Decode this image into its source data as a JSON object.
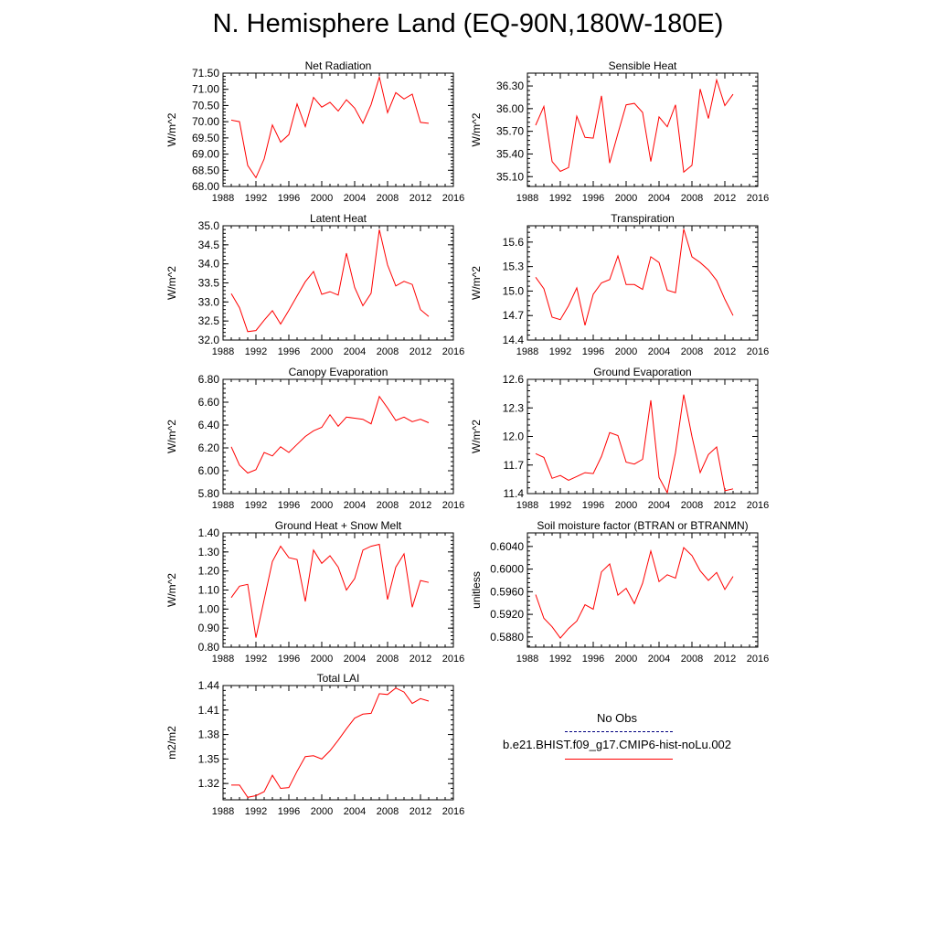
{
  "title": "N. Hemisphere Land (EQ-90N,180W-180E)",
  "colors": {
    "model": "#ff0000",
    "obs": "#000080"
  },
  "legend": [
    {
      "label": "No Obs",
      "style": "dashed",
      "color": "#000080"
    },
    {
      "label": "b.e21.BHIST.f09_g17.CMIP6-hist-noLu.002",
      "style": "solid",
      "color": "#ff0000"
    }
  ],
  "chart_data": [
    {
      "type": "line",
      "title": "Net Radiation",
      "ylabel": "W/m^2",
      "xlim": [
        1988,
        2016
      ],
      "ylim": [
        68.0,
        71.5
      ],
      "xticks": [
        "1988",
        "1992",
        "1996",
        "2000",
        "2004",
        "2008",
        "2012",
        "2016"
      ],
      "yticks": [
        "68.00",
        "68.50",
        "69.00",
        "69.50",
        "70.00",
        "70.50",
        "71.00",
        "71.50"
      ],
      "series": [
        {
          "x": [
            1989,
            1990,
            1991,
            1992,
            1993,
            1994,
            1995,
            1996,
            1997,
            1998,
            1999,
            2000,
            2001,
            2002,
            2003,
            2004,
            2005,
            2006,
            2007,
            2008,
            2009,
            2010,
            2011,
            2012,
            2013
          ],
          "values": [
            70.05,
            70.0,
            68.65,
            68.27,
            68.85,
            69.9,
            69.37,
            69.6,
            70.55,
            69.85,
            70.75,
            70.45,
            70.6,
            70.33,
            70.68,
            70.42,
            69.95,
            70.53,
            71.38,
            70.28,
            70.9,
            70.7,
            70.85,
            69.98,
            69.95
          ]
        }
      ]
    },
    {
      "type": "line",
      "title": "Sensible Heat",
      "ylabel": "W/m^2",
      "xlim": [
        1988,
        2016
      ],
      "ylim": [
        34.97,
        36.47
      ],
      "xticks": [
        "1988",
        "1992",
        "1996",
        "2000",
        "2004",
        "2008",
        "2012",
        "2016"
      ],
      "yticks": [
        "35.10",
        "35.40",
        "35.70",
        "36.00",
        "36.30"
      ],
      "series": [
        {
          "x": [
            1989,
            1990,
            1991,
            1992,
            1993,
            1994,
            1995,
            1996,
            1997,
            1998,
            1999,
            2000,
            2001,
            2002,
            2003,
            2004,
            2005,
            2006,
            2007,
            2008,
            2009,
            2010,
            2011,
            2012,
            2013
          ],
          "values": [
            35.78,
            36.03,
            35.3,
            35.17,
            35.22,
            35.9,
            35.62,
            35.61,
            36.17,
            35.28,
            35.67,
            36.05,
            36.07,
            35.95,
            35.3,
            35.89,
            35.76,
            36.05,
            35.16,
            35.25,
            36.26,
            35.87,
            36.38,
            36.04,
            36.19
          ]
        }
      ]
    },
    {
      "type": "line",
      "title": "Latent Heat",
      "ylabel": "W/m^2",
      "xlim": [
        1988,
        2016
      ],
      "ylim": [
        32.0,
        35.0
      ],
      "xticks": [
        "1988",
        "1992",
        "1996",
        "2000",
        "2004",
        "2008",
        "2012",
        "2016"
      ],
      "yticks": [
        "32.0",
        "32.5",
        "33.0",
        "33.5",
        "34.0",
        "34.5",
        "35.0"
      ],
      "series": [
        {
          "x": [
            1989,
            1990,
            1991,
            1992,
            1993,
            1994,
            1995,
            1996,
            1997,
            1998,
            1999,
            2000,
            2001,
            2002,
            2003,
            2004,
            2005,
            2006,
            2007,
            2008,
            2009,
            2010,
            2011,
            2012,
            2013
          ],
          "values": [
            33.22,
            32.85,
            32.22,
            32.25,
            32.52,
            32.77,
            32.42,
            32.78,
            33.16,
            33.53,
            33.8,
            33.2,
            33.27,
            33.18,
            34.28,
            33.38,
            32.9,
            33.23,
            34.9,
            33.97,
            33.42,
            33.54,
            33.46,
            32.8,
            32.62
          ]
        }
      ]
    },
    {
      "type": "line",
      "title": "Transpiration",
      "ylabel": "W/m^2",
      "xlim": [
        1988,
        2016
      ],
      "ylim": [
        14.4,
        15.8
      ],
      "xticks": [
        "1988",
        "1992",
        "1996",
        "2000",
        "2004",
        "2008",
        "2012",
        "2016"
      ],
      "yticks": [
        "14.4",
        "14.7",
        "15.0",
        "15.3",
        "15.6"
      ],
      "series": [
        {
          "x": [
            1989,
            1990,
            1991,
            1992,
            1993,
            1994,
            1995,
            1996,
            1997,
            1998,
            1999,
            2000,
            2001,
            2002,
            2003,
            2004,
            2005,
            2006,
            2007,
            2008,
            2009,
            2010,
            2011,
            2012,
            2013
          ],
          "values": [
            15.17,
            15.03,
            14.68,
            14.65,
            14.82,
            15.04,
            14.58,
            14.96,
            15.1,
            15.14,
            15.43,
            15.08,
            15.08,
            15.02,
            15.42,
            15.35,
            15.01,
            14.98,
            15.76,
            15.42,
            15.35,
            15.26,
            15.13,
            14.9,
            14.7
          ]
        }
      ]
    },
    {
      "type": "line",
      "title": "Canopy Evaporation",
      "ylabel": "W/m^2",
      "xlim": [
        1988,
        2016
      ],
      "ylim": [
        5.8,
        6.8
      ],
      "xticks": [
        "1988",
        "1992",
        "1996",
        "2000",
        "2004",
        "2008",
        "2012",
        "2016"
      ],
      "yticks": [
        "5.80",
        "6.00",
        "6.20",
        "6.40",
        "6.60",
        "6.80"
      ],
      "series": [
        {
          "x": [
            1989,
            1990,
            1991,
            1992,
            1993,
            1994,
            1995,
            1996,
            1997,
            1998,
            1999,
            2000,
            2001,
            2002,
            2003,
            2004,
            2005,
            2006,
            2007,
            2008,
            2009,
            2010,
            2011,
            2012,
            2013
          ],
          "values": [
            6.21,
            6.05,
            5.98,
            6.01,
            6.16,
            6.13,
            6.21,
            6.16,
            6.23,
            6.3,
            6.35,
            6.38,
            6.49,
            6.39,
            6.47,
            6.46,
            6.45,
            6.41,
            6.65,
            6.55,
            6.44,
            6.47,
            6.43,
            6.45,
            6.42
          ]
        }
      ]
    },
    {
      "type": "line",
      "title": "Ground Evaporation",
      "ylabel": "W/m^2",
      "xlim": [
        1988,
        2016
      ],
      "ylim": [
        11.4,
        12.6
      ],
      "xticks": [
        "1988",
        "1992",
        "1996",
        "2000",
        "2004",
        "2008",
        "2012",
        "2016"
      ],
      "yticks": [
        "11.4",
        "11.7",
        "12.0",
        "12.3",
        "12.6"
      ],
      "series": [
        {
          "x": [
            1989,
            1990,
            1991,
            1992,
            1993,
            1994,
            1995,
            1996,
            1997,
            1998,
            1999,
            2000,
            2001,
            2002,
            2003,
            2004,
            2005,
            2006,
            2007,
            2008,
            2009,
            2010,
            2011,
            2012,
            2013
          ],
          "values": [
            11.82,
            11.78,
            11.56,
            11.59,
            11.54,
            11.58,
            11.62,
            11.61,
            11.79,
            12.04,
            12.01,
            11.73,
            11.71,
            11.76,
            12.38,
            11.57,
            11.41,
            11.83,
            12.44,
            12.0,
            11.62,
            11.81,
            11.89,
            11.43,
            11.45
          ]
        }
      ]
    },
    {
      "type": "line",
      "title": "Ground Heat + Snow Melt",
      "ylabel": "W/m^2",
      "xlim": [
        1988,
        2016
      ],
      "ylim": [
        0.8,
        1.4
      ],
      "xticks": [
        "1988",
        "1992",
        "1996",
        "2000",
        "2004",
        "2008",
        "2012",
        "2016"
      ],
      "yticks": [
        "0.80",
        "0.90",
        "1.00",
        "1.10",
        "1.20",
        "1.30",
        "1.40"
      ],
      "series": [
        {
          "x": [
            1989,
            1990,
            1991,
            1992,
            1993,
            1994,
            1995,
            1996,
            1997,
            1998,
            1999,
            2000,
            2001,
            2002,
            2003,
            2004,
            2005,
            2006,
            2007,
            2008,
            2009,
            2010,
            2011,
            2012,
            2013
          ],
          "values": [
            1.06,
            1.12,
            1.13,
            0.85,
            1.05,
            1.25,
            1.33,
            1.27,
            1.26,
            1.04,
            1.31,
            1.24,
            1.28,
            1.22,
            1.1,
            1.16,
            1.31,
            1.33,
            1.34,
            1.05,
            1.22,
            1.29,
            1.01,
            1.15,
            1.14
          ]
        }
      ]
    },
    {
      "type": "line",
      "title": "Soil moisture factor (BTRAN or BTRANMN)",
      "ylabel": "unitless",
      "xlim": [
        1988,
        2016
      ],
      "ylim": [
        0.5862,
        0.6064
      ],
      "xticks": [
        "1988",
        "1992",
        "1996",
        "2000",
        "2004",
        "2008",
        "2012",
        "2016"
      ],
      "yticks": [
        "0.5880",
        "0.5920",
        "0.5960",
        "0.6000",
        "0.6040"
      ],
      "series": [
        {
          "x": [
            1989,
            1990,
            1991,
            1992,
            1993,
            1994,
            1995,
            1996,
            1997,
            1998,
            1999,
            2000,
            2001,
            2002,
            2003,
            2004,
            2005,
            2006,
            2007,
            2008,
            2009,
            2010,
            2011,
            2012,
            2013
          ],
          "values": [
            0.5955,
            0.5913,
            0.5898,
            0.5878,
            0.5895,
            0.5908,
            0.5937,
            0.5929,
            0.5995,
            0.6009,
            0.5954,
            0.5966,
            0.5939,
            0.5975,
            0.6032,
            0.5978,
            0.599,
            0.5984,
            0.6038,
            0.6024,
            0.5997,
            0.598,
            0.5994,
            0.5964,
            0.5987
          ]
        }
      ]
    },
    {
      "type": "line",
      "title": "Total LAI",
      "ylabel": "m2/m2",
      "xlim": [
        1988,
        2016
      ],
      "ylim": [
        1.3,
        1.44
      ],
      "xticks": [
        "1988",
        "1992",
        "1996",
        "2000",
        "2004",
        "2008",
        "2012",
        "2016"
      ],
      "yticks": [
        "1.32",
        "1.35",
        "1.38",
        "1.41",
        "1.44"
      ],
      "series": [
        {
          "x": [
            1989,
            1990,
            1991,
            1992,
            1993,
            1994,
            1995,
            1996,
            1997,
            1998,
            1999,
            2000,
            2001,
            2002,
            2003,
            2004,
            2005,
            2006,
            2007,
            2008,
            2009,
            2010,
            2011,
            2012,
            2013
          ],
          "values": [
            1.318,
            1.318,
            1.303,
            1.305,
            1.31,
            1.33,
            1.314,
            1.315,
            1.335,
            1.353,
            1.354,
            1.35,
            1.36,
            1.373,
            1.387,
            1.4,
            1.405,
            1.406,
            1.43,
            1.429,
            1.437,
            1.432,
            1.418,
            1.424,
            1.421
          ]
        }
      ]
    }
  ]
}
